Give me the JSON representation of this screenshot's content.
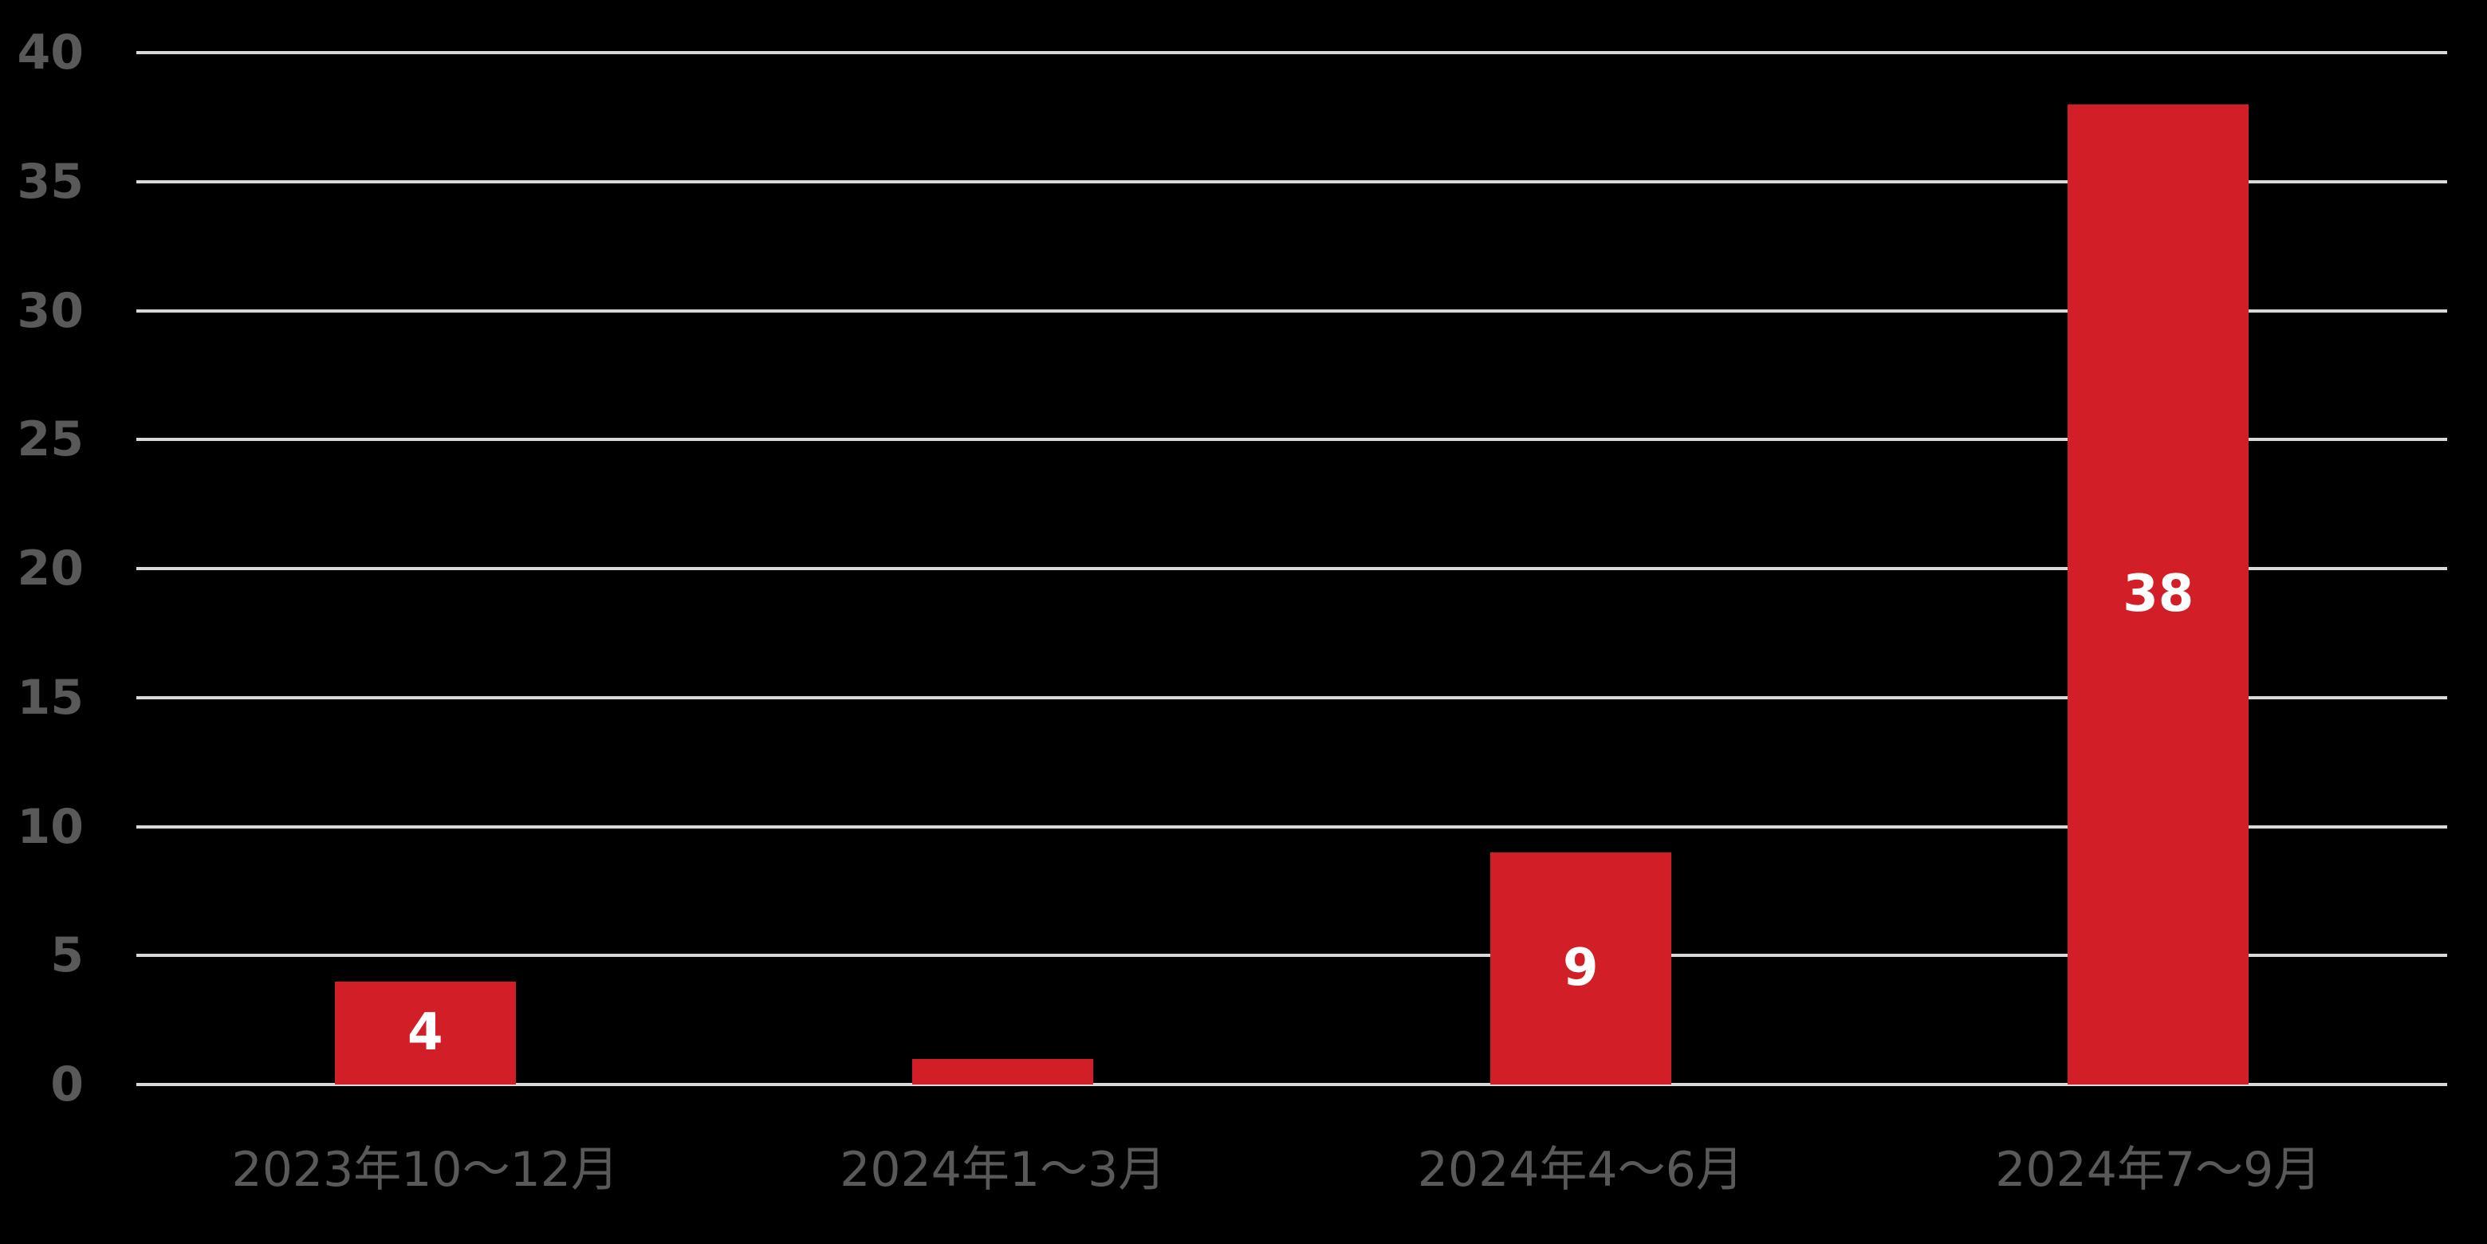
{
  "chart_data": {
    "type": "bar",
    "title": "",
    "xlabel": "",
    "ylabel": "",
    "categories": [
      "2023年10～12月",
      "2024年1～3月",
      "2024年4～6月",
      "2024年7～9月"
    ],
    "values": [
      4,
      1,
      9,
      38
    ],
    "data_labels": [
      "4",
      "",
      "9",
      "38"
    ],
    "ylim": [
      0,
      40
    ],
    "yticks": [
      0,
      5,
      10,
      15,
      20,
      25,
      30,
      35,
      40
    ],
    "grid": true,
    "legend": false,
    "colors": {
      "background": "#000000",
      "bar": "#d21f27",
      "axis_text": "#595959",
      "gridline": "#d9d9d9",
      "data_label": "#ffffff"
    }
  }
}
